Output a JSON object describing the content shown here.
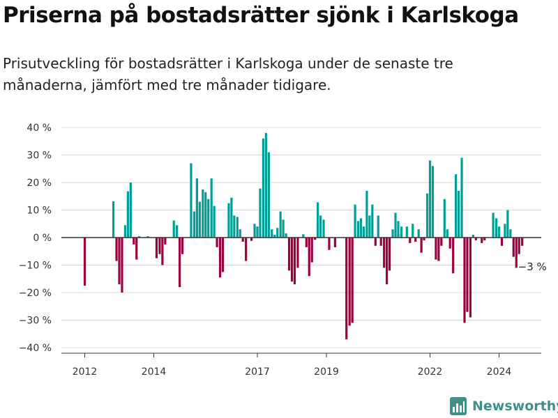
{
  "title": "Priserna på bostadsrätter sjönk i Karlskoga",
  "subtitle": "Prisutveckling för bostadsrätter i Karlskoga under de senaste tre månaderna, jämfört med tre månader tidigare.",
  "brand": {
    "name": "Newsworthy",
    "icon": "bar-chart-logo-icon",
    "color": "#3f8f8a"
  },
  "chart_data": {
    "type": "bar",
    "title": "",
    "xlabel": "",
    "ylabel": "",
    "ylim": [
      -40,
      40
    ],
    "y_ticks": [
      {
        "value": 40,
        "label": "40 %"
      },
      {
        "value": 30,
        "label": "30 %"
      },
      {
        "value": 20,
        "label": "20 %"
      },
      {
        "value": 10,
        "label": "10 %"
      },
      {
        "value": 0,
        "label": "0 %"
      },
      {
        "value": -10,
        "label": "−10 %"
      },
      {
        "value": -20,
        "label": "−20 %"
      },
      {
        "value": -30,
        "label": "−30 %"
      },
      {
        "value": -40,
        "label": "−40 %"
      }
    ],
    "x_ticks": [
      {
        "value": 2012.0,
        "label": "2012"
      },
      {
        "value": 2014.0,
        "label": "2014"
      },
      {
        "value": 2017.0,
        "label": "2017"
      },
      {
        "value": 2019.0,
        "label": "2019"
      },
      {
        "value": 2022.0,
        "label": "2022"
      },
      {
        "value": 2024.0,
        "label": "2024"
      }
    ],
    "colors": {
      "positive": "#009e94",
      "negative": "#9b003f",
      "grid": "#d9d9d9",
      "zero_line": "#333333"
    },
    "grid": true,
    "annotation": {
      "text": "−3 %",
      "x": 2024.67,
      "y": -3
    },
    "points": [
      {
        "x": 2012.0,
        "y": -17.5
      },
      {
        "x": 2012.83,
        "y": 13.2
      },
      {
        "x": 2012.92,
        "y": -8.5
      },
      {
        "x": 2013.0,
        "y": -17
      },
      {
        "x": 2013.08,
        "y": -20
      },
      {
        "x": 2013.17,
        "y": 4.5
      },
      {
        "x": 2013.25,
        "y": 16.8
      },
      {
        "x": 2013.33,
        "y": 20
      },
      {
        "x": 2013.42,
        "y": -2.5
      },
      {
        "x": 2013.5,
        "y": -8
      },
      {
        "x": 2013.58,
        "y": 0.5
      },
      {
        "x": 2013.83,
        "y": 0.5
      },
      {
        "x": 2014.08,
        "y": -7.5
      },
      {
        "x": 2014.17,
        "y": -6
      },
      {
        "x": 2014.25,
        "y": -10
      },
      {
        "x": 2014.33,
        "y": -2.5
      },
      {
        "x": 2014.58,
        "y": 6.2
      },
      {
        "x": 2014.67,
        "y": 4.5
      },
      {
        "x": 2014.75,
        "y": -18
      },
      {
        "x": 2014.83,
        "y": -6
      },
      {
        "x": 2015.08,
        "y": 27
      },
      {
        "x": 2015.17,
        "y": 9.5
      },
      {
        "x": 2015.25,
        "y": 21.5
      },
      {
        "x": 2015.33,
        "y": 13
      },
      {
        "x": 2015.42,
        "y": 17.5
      },
      {
        "x": 2015.5,
        "y": 16.5
      },
      {
        "x": 2015.58,
        "y": 14
      },
      {
        "x": 2015.67,
        "y": 21.5
      },
      {
        "x": 2015.75,
        "y": 11.5
      },
      {
        "x": 2015.83,
        "y": -3.5
      },
      {
        "x": 2015.92,
        "y": -14.5
      },
      {
        "x": 2016.0,
        "y": -12.5
      },
      {
        "x": 2016.17,
        "y": 12.5
      },
      {
        "x": 2016.25,
        "y": 14.5
      },
      {
        "x": 2016.33,
        "y": 8
      },
      {
        "x": 2016.42,
        "y": 7.5
      },
      {
        "x": 2016.5,
        "y": 3
      },
      {
        "x": 2016.58,
        "y": -1.5
      },
      {
        "x": 2016.67,
        "y": -8.5
      },
      {
        "x": 2016.83,
        "y": -1.2
      },
      {
        "x": 2016.92,
        "y": 5
      },
      {
        "x": 2017.0,
        "y": 4
      },
      {
        "x": 2017.08,
        "y": 17.8
      },
      {
        "x": 2017.17,
        "y": 36
      },
      {
        "x": 2017.25,
        "y": 38
      },
      {
        "x": 2017.33,
        "y": 31
      },
      {
        "x": 2017.42,
        "y": 3
      },
      {
        "x": 2017.5,
        "y": 1
      },
      {
        "x": 2017.58,
        "y": 3.5
      },
      {
        "x": 2017.67,
        "y": 9.5
      },
      {
        "x": 2017.75,
        "y": 6.5
      },
      {
        "x": 2017.83,
        "y": 1.5
      },
      {
        "x": 2017.92,
        "y": -12
      },
      {
        "x": 2018.0,
        "y": -16
      },
      {
        "x": 2018.08,
        "y": -17
      },
      {
        "x": 2018.17,
        "y": -11
      },
      {
        "x": 2018.33,
        "y": 1.2
      },
      {
        "x": 2018.42,
        "y": -3.5
      },
      {
        "x": 2018.5,
        "y": -14
      },
      {
        "x": 2018.58,
        "y": -9
      },
      {
        "x": 2018.67,
        "y": -0.8
      },
      {
        "x": 2018.75,
        "y": 12.8
      },
      {
        "x": 2018.83,
        "y": 8
      },
      {
        "x": 2018.92,
        "y": 6.5
      },
      {
        "x": 2019.08,
        "y": -4.5
      },
      {
        "x": 2019.25,
        "y": -3.5
      },
      {
        "x": 2019.58,
        "y": -37
      },
      {
        "x": 2019.67,
        "y": -32
      },
      {
        "x": 2019.75,
        "y": -31
      },
      {
        "x": 2019.83,
        "y": 12
      },
      {
        "x": 2019.92,
        "y": 6
      },
      {
        "x": 2020.0,
        "y": 7
      },
      {
        "x": 2020.08,
        "y": 4
      },
      {
        "x": 2020.17,
        "y": 17
      },
      {
        "x": 2020.25,
        "y": 8
      },
      {
        "x": 2020.33,
        "y": 12
      },
      {
        "x": 2020.42,
        "y": -3
      },
      {
        "x": 2020.5,
        "y": 8
      },
      {
        "x": 2020.58,
        "y": -3
      },
      {
        "x": 2020.67,
        "y": -11
      },
      {
        "x": 2020.75,
        "y": -17
      },
      {
        "x": 2020.83,
        "y": -12
      },
      {
        "x": 2020.92,
        "y": 3
      },
      {
        "x": 2021.0,
        "y": 9
      },
      {
        "x": 2021.08,
        "y": 6
      },
      {
        "x": 2021.17,
        "y": 4
      },
      {
        "x": 2021.33,
        "y": 4
      },
      {
        "x": 2021.42,
        "y": -2
      },
      {
        "x": 2021.5,
        "y": 5
      },
      {
        "x": 2021.58,
        "y": -1.5
      },
      {
        "x": 2021.67,
        "y": 3
      },
      {
        "x": 2021.75,
        "y": -5.5
      },
      {
        "x": 2021.83,
        "y": -1
      },
      {
        "x": 2021.92,
        "y": 16
      },
      {
        "x": 2022.0,
        "y": 28
      },
      {
        "x": 2022.08,
        "y": 26
      },
      {
        "x": 2022.17,
        "y": -8
      },
      {
        "x": 2022.25,
        "y": -8.5
      },
      {
        "x": 2022.33,
        "y": -3
      },
      {
        "x": 2022.42,
        "y": 14
      },
      {
        "x": 2022.5,
        "y": 3
      },
      {
        "x": 2022.58,
        "y": -4
      },
      {
        "x": 2022.67,
        "y": -13
      },
      {
        "x": 2022.75,
        "y": 23
      },
      {
        "x": 2022.83,
        "y": 17
      },
      {
        "x": 2022.92,
        "y": 29
      },
      {
        "x": 2023.0,
        "y": -31
      },
      {
        "x": 2023.08,
        "y": -27
      },
      {
        "x": 2023.17,
        "y": -29
      },
      {
        "x": 2023.25,
        "y": 1
      },
      {
        "x": 2023.33,
        "y": -1
      },
      {
        "x": 2023.5,
        "y": -2
      },
      {
        "x": 2023.58,
        "y": -1
      },
      {
        "x": 2023.83,
        "y": 9
      },
      {
        "x": 2023.92,
        "y": 7
      },
      {
        "x": 2024.0,
        "y": 4
      },
      {
        "x": 2024.08,
        "y": -3
      },
      {
        "x": 2024.17,
        "y": 5
      },
      {
        "x": 2024.25,
        "y": 10
      },
      {
        "x": 2024.33,
        "y": 3
      },
      {
        "x": 2024.42,
        "y": -7
      },
      {
        "x": 2024.5,
        "y": -11
      },
      {
        "x": 2024.58,
        "y": -6
      },
      {
        "x": 2024.67,
        "y": -3
      }
    ]
  }
}
